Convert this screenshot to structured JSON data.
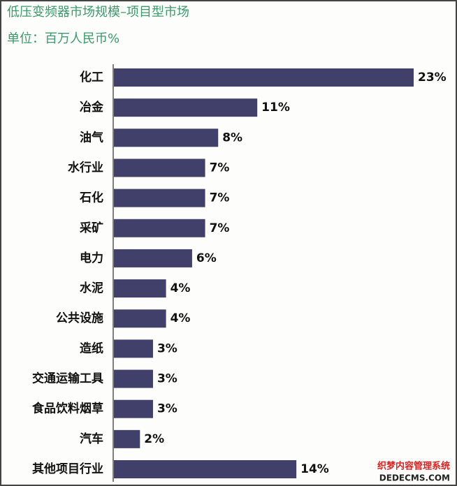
{
  "chart_data": {
    "type": "bar",
    "orientation": "horizontal",
    "title": "低压变频器市场规模–项目型市场",
    "subtitle": "单位：百万人民币%",
    "categories": [
      "化工",
      "冶金",
      "油气",
      "水行业",
      "石化",
      "采矿",
      "电力",
      "水泥",
      "公共设施",
      "造纸",
      "交通运输工具",
      "食品饮料烟草",
      "汽车",
      "其他项目行业"
    ],
    "values": [
      23,
      11,
      8,
      7,
      7,
      7,
      6,
      4,
      4,
      3,
      3,
      3,
      2,
      14
    ],
    "value_labels": [
      "23%",
      "11%",
      "8%",
      "7%",
      "7%",
      "7%",
      "6%",
      "4%",
      "4%",
      "3%",
      "3%",
      "3%",
      "2%",
      "14%"
    ],
    "color": "#40406a",
    "title_color": "#3a9a6a"
  },
  "watermark": {
    "line1": "织梦内容管理系统",
    "line2": "DEDECMS.COM"
  }
}
